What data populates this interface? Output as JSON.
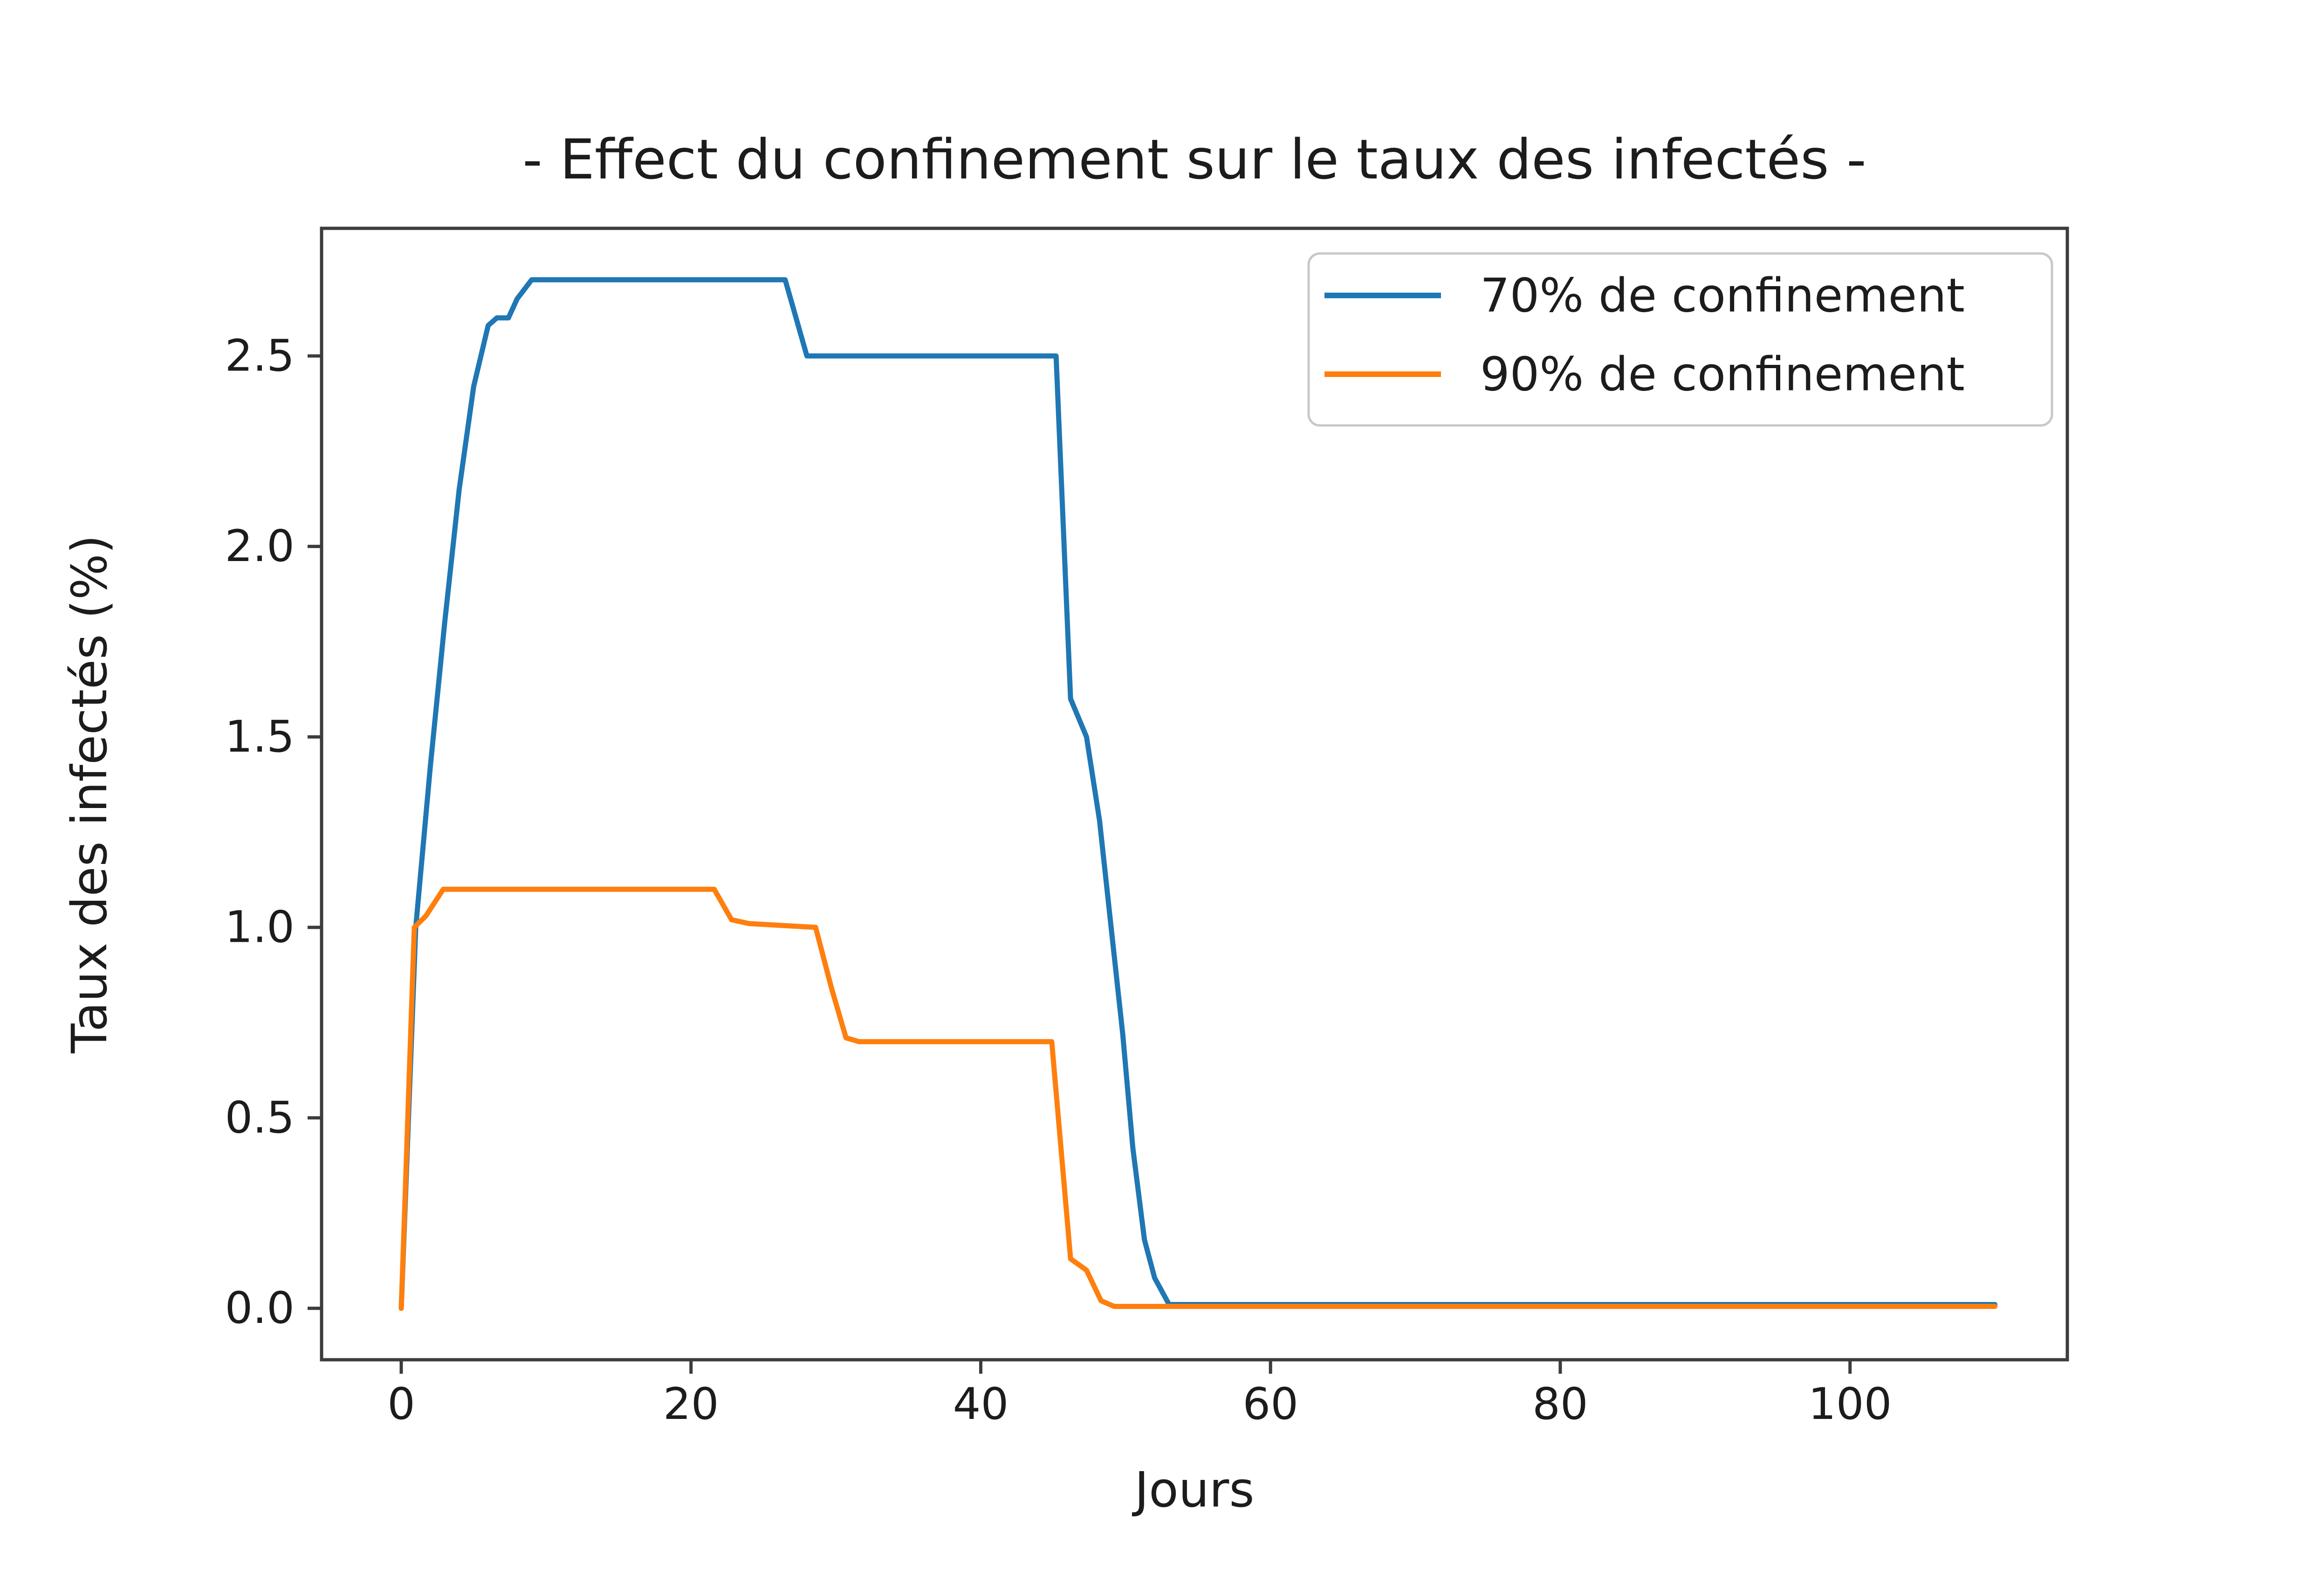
{
  "chart_data": {
    "type": "line",
    "title": "- Effect du confinement sur le taux des infectés -",
    "xlabel": "Jours",
    "ylabel": "Taux des infectés (%)",
    "xlim": [
      -5.5,
      115.0
    ],
    "ylim": [
      -0.135,
      2.835
    ],
    "grid": false,
    "legend_position": "upper right",
    "axis_color": "#3c3c3c",
    "text_color": "#1c1c1c",
    "xticks": [
      {
        "label": "0",
        "value": 0
      },
      {
        "label": "20",
        "value": 20
      },
      {
        "label": "40",
        "value": 40
      },
      {
        "label": "60",
        "value": 60
      },
      {
        "label": "80",
        "value": 80
      },
      {
        "label": "100",
        "value": 100
      }
    ],
    "yticks": [
      {
        "label": "0.0",
        "value": 0.0
      },
      {
        "label": "0.5",
        "value": 0.5
      },
      {
        "label": "1.0",
        "value": 1.0
      },
      {
        "label": "1.5",
        "value": 1.5
      },
      {
        "label": "2.0",
        "value": 2.0
      },
      {
        "label": "2.5",
        "value": 2.5
      }
    ],
    "series": [
      {
        "name": "70% de confinement",
        "color": "#1f77b4",
        "points": [
          [
            0,
            0.0
          ],
          [
            1,
            1.0
          ],
          [
            2,
            1.42
          ],
          [
            3,
            1.8
          ],
          [
            4,
            2.15
          ],
          [
            5,
            2.42
          ],
          [
            6,
            2.58
          ],
          [
            6.6,
            2.6
          ],
          [
            7.4,
            2.6
          ],
          [
            8,
            2.65
          ],
          [
            9,
            2.7
          ],
          [
            26.5,
            2.7
          ],
          [
            28,
            2.5
          ],
          [
            45.2,
            2.5
          ],
          [
            46.2,
            1.6
          ],
          [
            47.3,
            1.5
          ],
          [
            48.2,
            1.28
          ],
          [
            49,
            1.0
          ],
          [
            49.8,
            0.72
          ],
          [
            50.5,
            0.42
          ],
          [
            51.3,
            0.18
          ],
          [
            52,
            0.08
          ],
          [
            53,
            0.01
          ],
          [
            110,
            0.01
          ]
        ]
      },
      {
        "name": "90% de confinement",
        "color": "#ff7f0e",
        "points": [
          [
            0,
            0.0
          ],
          [
            0.9,
            1.0
          ],
          [
            1.7,
            1.03
          ],
          [
            2.9,
            1.1
          ],
          [
            21.6,
            1.1
          ],
          [
            22.8,
            1.02
          ],
          [
            24,
            1.01
          ],
          [
            28.6,
            1.0
          ],
          [
            29.7,
            0.84
          ],
          [
            30.7,
            0.71
          ],
          [
            31.6,
            0.7
          ],
          [
            44.9,
            0.7
          ],
          [
            46.2,
            0.13
          ],
          [
            47.3,
            0.1
          ],
          [
            48.3,
            0.02
          ],
          [
            49.2,
            0.005
          ],
          [
            110,
            0.005
          ]
        ]
      }
    ]
  }
}
